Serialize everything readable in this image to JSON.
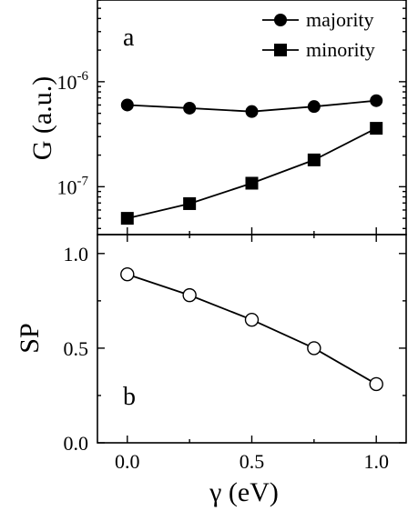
{
  "chart_data": [
    {
      "type": "line",
      "panel_label": "a",
      "ylabel": "G (a.u.)",
      "yscale": "log",
      "ylim": [
        3.5e-08,
        6e-06
      ],
      "y_tick_labels": [
        {
          "value": 1e-06,
          "base": "10",
          "exp": "-6"
        },
        {
          "value": 1e-07,
          "base": "10",
          "exp": "-7"
        }
      ],
      "x": [
        0.0,
        0.25,
        0.5,
        0.75,
        1.0
      ],
      "xlim": [
        -0.12,
        1.12
      ],
      "legend_position": "top-right",
      "series": [
        {
          "name": "majority",
          "marker": "filled-circle",
          "color": "#000000",
          "values": [
            6e-07,
            5.6e-07,
            5.2e-07,
            5.8e-07,
            6.6e-07
          ]
        },
        {
          "name": "minority",
          "marker": "filled-square",
          "color": "#000000",
          "values": [
            5e-08,
            6.9e-08,
            1.08e-07,
            1.8e-07,
            3.6e-07
          ]
        }
      ]
    },
    {
      "type": "line",
      "panel_label": "b",
      "ylabel": "SP",
      "xlabel": "γ (eV)",
      "ylim": [
        0.0,
        1.1
      ],
      "yticks": [
        "0.0",
        "0.5",
        "1.0"
      ],
      "xlim": [
        -0.12,
        1.12
      ],
      "xticks": [
        "0.0",
        "0.5",
        "1.0"
      ],
      "x": [
        0.0,
        0.25,
        0.5,
        0.75,
        1.0
      ],
      "series": [
        {
          "marker": "open-circle",
          "color": "#000000",
          "values": [
            0.89,
            0.78,
            0.65,
            0.5,
            0.31
          ]
        }
      ]
    }
  ]
}
